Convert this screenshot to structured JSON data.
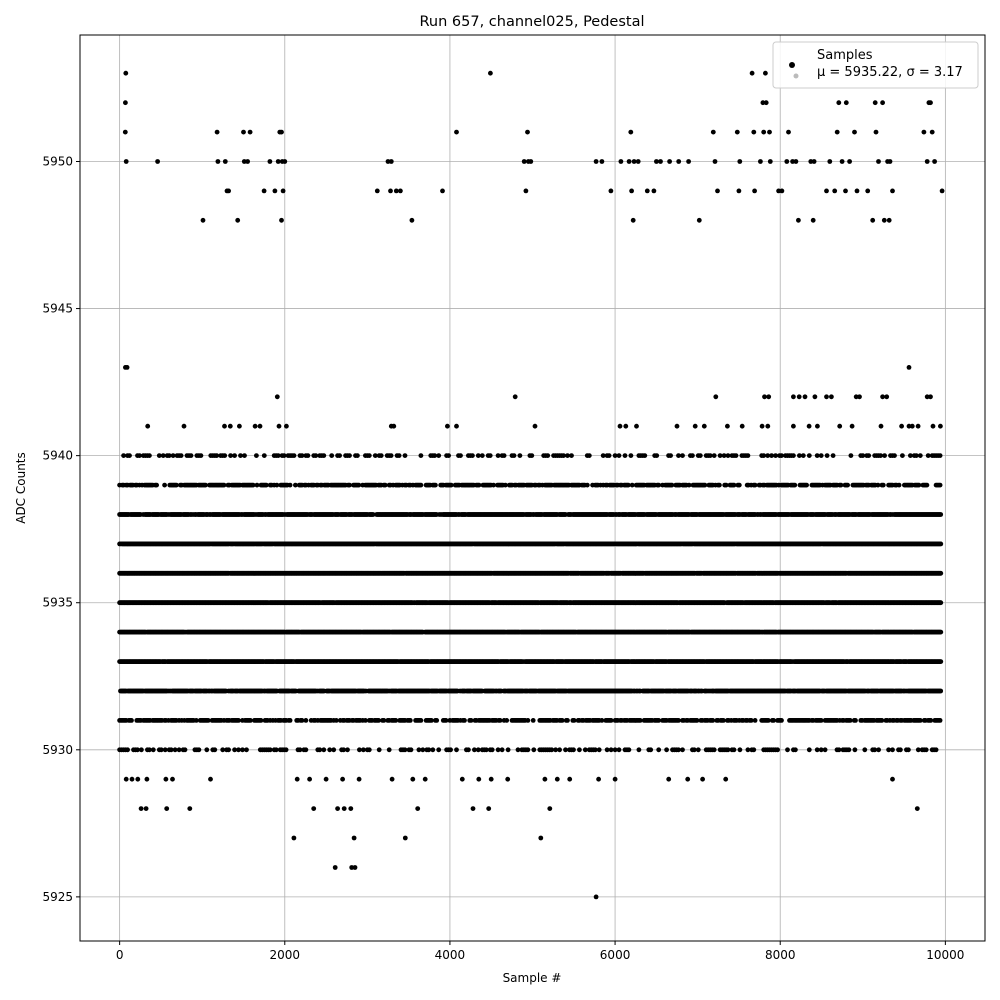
{
  "chart_data": {
    "type": "scatter",
    "title": "Run 657, channel025, Pedestal",
    "xlabel": "Sample #",
    "ylabel": "ADC Counts",
    "xlim": [
      -480,
      10480
    ],
    "ylim": [
      5923.5,
      5954.3
    ],
    "xticks": [
      0,
      2000,
      4000,
      6000,
      8000,
      10000
    ],
    "yticks": [
      5925,
      5930,
      5935,
      5940,
      5945,
      5950
    ],
    "grid": true,
    "legend": {
      "placement": "top-right",
      "entries": [
        {
          "label": "Samples",
          "marker_color": "#000000"
        },
        {
          "label": "μ = 5935.22, σ = 3.17",
          "marker_color": "#bbbbbb"
        }
      ]
    },
    "series": [
      {
        "name": "Samples",
        "color": "#000000",
        "band_levels": [
          5930,
          5931,
          5932,
          5933,
          5934,
          5935,
          5936,
          5937,
          5938,
          5939,
          5940
        ],
        "sample_range": [
          0,
          9950
        ],
        "points": [
          [
            75,
            5953
          ],
          [
            70,
            5952
          ],
          [
            68,
            5951
          ],
          [
            80,
            5950
          ],
          [
            460,
            5950
          ],
          [
            1180,
            5951
          ],
          [
            1190,
            5950
          ],
          [
            1280,
            5950
          ],
          [
            1300,
            5949
          ],
          [
            1320,
            5949
          ],
          [
            1010,
            5948
          ],
          [
            1430,
            5948
          ],
          [
            1500,
            5951
          ],
          [
            1580,
            5951
          ],
          [
            1510,
            5950
          ],
          [
            1550,
            5950
          ],
          [
            1750,
            5949
          ],
          [
            1820,
            5950
          ],
          [
            1880,
            5949
          ],
          [
            1920,
            5950
          ],
          [
            1940,
            5951
          ],
          [
            1960,
            5951
          ],
          [
            1970,
            5950
          ],
          [
            2000,
            5950
          ],
          [
            1980,
            5949
          ],
          [
            1960,
            5948
          ],
          [
            3250,
            5950
          ],
          [
            3290,
            5950
          ],
          [
            3120,
            5949
          ],
          [
            3280,
            5949
          ],
          [
            3350,
            5949
          ],
          [
            3400,
            5949
          ],
          [
            3540,
            5948
          ],
          [
            3910,
            5949
          ],
          [
            4080,
            5951
          ],
          [
            4490,
            5953
          ],
          [
            4900,
            5950
          ],
          [
            4950,
            5950
          ],
          [
            4980,
            5950
          ],
          [
            4920,
            5949
          ],
          [
            4940,
            5951
          ],
          [
            5770,
            5950
          ],
          [
            5840,
            5950
          ],
          [
            5950,
            5949
          ],
          [
            6070,
            5950
          ],
          [
            6170,
            5950
          ],
          [
            6190,
            5951
          ],
          [
            6230,
            5950
          ],
          [
            6280,
            5950
          ],
          [
            6200,
            5949
          ],
          [
            6220,
            5948
          ],
          [
            6390,
            5949
          ],
          [
            6470,
            5949
          ],
          [
            6500,
            5950
          ],
          [
            6550,
            5950
          ],
          [
            6660,
            5950
          ],
          [
            6770,
            5950
          ],
          [
            6890,
            5950
          ],
          [
            7020,
            5948
          ],
          [
            7190,
            5951
          ],
          [
            7210,
            5950
          ],
          [
            7240,
            5949
          ],
          [
            7480,
            5951
          ],
          [
            7510,
            5950
          ],
          [
            7500,
            5949
          ],
          [
            7660,
            5953
          ],
          [
            7680,
            5951
          ],
          [
            7690,
            5949
          ],
          [
            7760,
            5950
          ],
          [
            7790,
            5952
          ],
          [
            7800,
            5951
          ],
          [
            7820,
            5953
          ],
          [
            7830,
            5952
          ],
          [
            7870,
            5951
          ],
          [
            7880,
            5950
          ],
          [
            7980,
            5949
          ],
          [
            8020,
            5949
          ],
          [
            8080,
            5950
          ],
          [
            8100,
            5951
          ],
          [
            8150,
            5950
          ],
          [
            8190,
            5950
          ],
          [
            8220,
            5948
          ],
          [
            8370,
            5950
          ],
          [
            8410,
            5950
          ],
          [
            8400,
            5948
          ],
          [
            8560,
            5949
          ],
          [
            8600,
            5950
          ],
          [
            8660,
            5949
          ],
          [
            8690,
            5951
          ],
          [
            8710,
            5952
          ],
          [
            8750,
            5950
          ],
          [
            8800,
            5952
          ],
          [
            8790,
            5949
          ],
          [
            8840,
            5950
          ],
          [
            8900,
            5951
          ],
          [
            8930,
            5949
          ],
          [
            9060,
            5949
          ],
          [
            9120,
            5948
          ],
          [
            9150,
            5952
          ],
          [
            9160,
            5951
          ],
          [
            9190,
            5950
          ],
          [
            9240,
            5952
          ],
          [
            9260,
            5948
          ],
          [
            9280,
            5953
          ],
          [
            9300,
            5950
          ],
          [
            9330,
            5950
          ],
          [
            9320,
            5948
          ],
          [
            9360,
            5949
          ],
          [
            9740,
            5951
          ],
          [
            9780,
            5950
          ],
          [
            9800,
            5952
          ],
          [
            9820,
            5952
          ],
          [
            9840,
            5951
          ],
          [
            9870,
            5950
          ],
          [
            9960,
            5949
          ],
          [
            70,
            5943
          ],
          [
            90,
            5943
          ],
          [
            1910,
            5942
          ],
          [
            4790,
            5942
          ],
          [
            7220,
            5942
          ],
          [
            7810,
            5942
          ],
          [
            7860,
            5942
          ],
          [
            8160,
            5942
          ],
          [
            8230,
            5942
          ],
          [
            8300,
            5942
          ],
          [
            8420,
            5942
          ],
          [
            8560,
            5942
          ],
          [
            8620,
            5942
          ],
          [
            8920,
            5942
          ],
          [
            8960,
            5942
          ],
          [
            9240,
            5942
          ],
          [
            9290,
            5942
          ],
          [
            9560,
            5943
          ],
          [
            9780,
            5942
          ],
          [
            9820,
            5942
          ],
          [
            340,
            5941
          ],
          [
            780,
            5941
          ],
          [
            1270,
            5941
          ],
          [
            1340,
            5941
          ],
          [
            1450,
            5941
          ],
          [
            1640,
            5941
          ],
          [
            1700,
            5941
          ],
          [
            1930,
            5941
          ],
          [
            2020,
            5941
          ],
          [
            3290,
            5941
          ],
          [
            3320,
            5941
          ],
          [
            3970,
            5941
          ],
          [
            4080,
            5941
          ],
          [
            5030,
            5941
          ],
          [
            6060,
            5941
          ],
          [
            6130,
            5941
          ],
          [
            6260,
            5941
          ],
          [
            6750,
            5941
          ],
          [
            6970,
            5941
          ],
          [
            7080,
            5941
          ],
          [
            7360,
            5941
          ],
          [
            7540,
            5941
          ],
          [
            7780,
            5941
          ],
          [
            7850,
            5941
          ],
          [
            8160,
            5941
          ],
          [
            8350,
            5941
          ],
          [
            8450,
            5941
          ],
          [
            8720,
            5941
          ],
          [
            8870,
            5941
          ],
          [
            9220,
            5941
          ],
          [
            9470,
            5941
          ],
          [
            9560,
            5941
          ],
          [
            9600,
            5941
          ],
          [
            9670,
            5941
          ],
          [
            9850,
            5941
          ],
          [
            9940,
            5941
          ],
          [
            2110,
            5927
          ],
          [
            2840,
            5927
          ],
          [
            3460,
            5927
          ],
          [
            5100,
            5927
          ],
          [
            2610,
            5926
          ],
          [
            2810,
            5926
          ],
          [
            2850,
            5926
          ],
          [
            5770,
            5925
          ],
          [
            80,
            5929
          ],
          [
            150,
            5929
          ],
          [
            220,
            5929
          ],
          [
            330,
            5929
          ],
          [
            560,
            5929
          ],
          [
            640,
            5929
          ],
          [
            1100,
            5929
          ],
          [
            2150,
            5929
          ],
          [
            2300,
            5929
          ],
          [
            2500,
            5929
          ],
          [
            2700,
            5929
          ],
          [
            2900,
            5929
          ],
          [
            3300,
            5929
          ],
          [
            3550,
            5929
          ],
          [
            3700,
            5929
          ],
          [
            4150,
            5929
          ],
          [
            4350,
            5929
          ],
          [
            4500,
            5929
          ],
          [
            4700,
            5929
          ],
          [
            5150,
            5929
          ],
          [
            5300,
            5929
          ],
          [
            5450,
            5929
          ],
          [
            5800,
            5929
          ],
          [
            6000,
            5929
          ],
          [
            6650,
            5929
          ],
          [
            6880,
            5929
          ],
          [
            7060,
            5929
          ],
          [
            7340,
            5929
          ],
          [
            9360,
            5929
          ],
          [
            260,
            5928
          ],
          [
            320,
            5928
          ],
          [
            570,
            5928
          ],
          [
            850,
            5928
          ],
          [
            2350,
            5928
          ],
          [
            2640,
            5928
          ],
          [
            2720,
            5928
          ],
          [
            2800,
            5928
          ],
          [
            3610,
            5928
          ],
          [
            4280,
            5928
          ],
          [
            4470,
            5928
          ],
          [
            5210,
            5928
          ],
          [
            9660,
            5928
          ]
        ]
      }
    ]
  }
}
